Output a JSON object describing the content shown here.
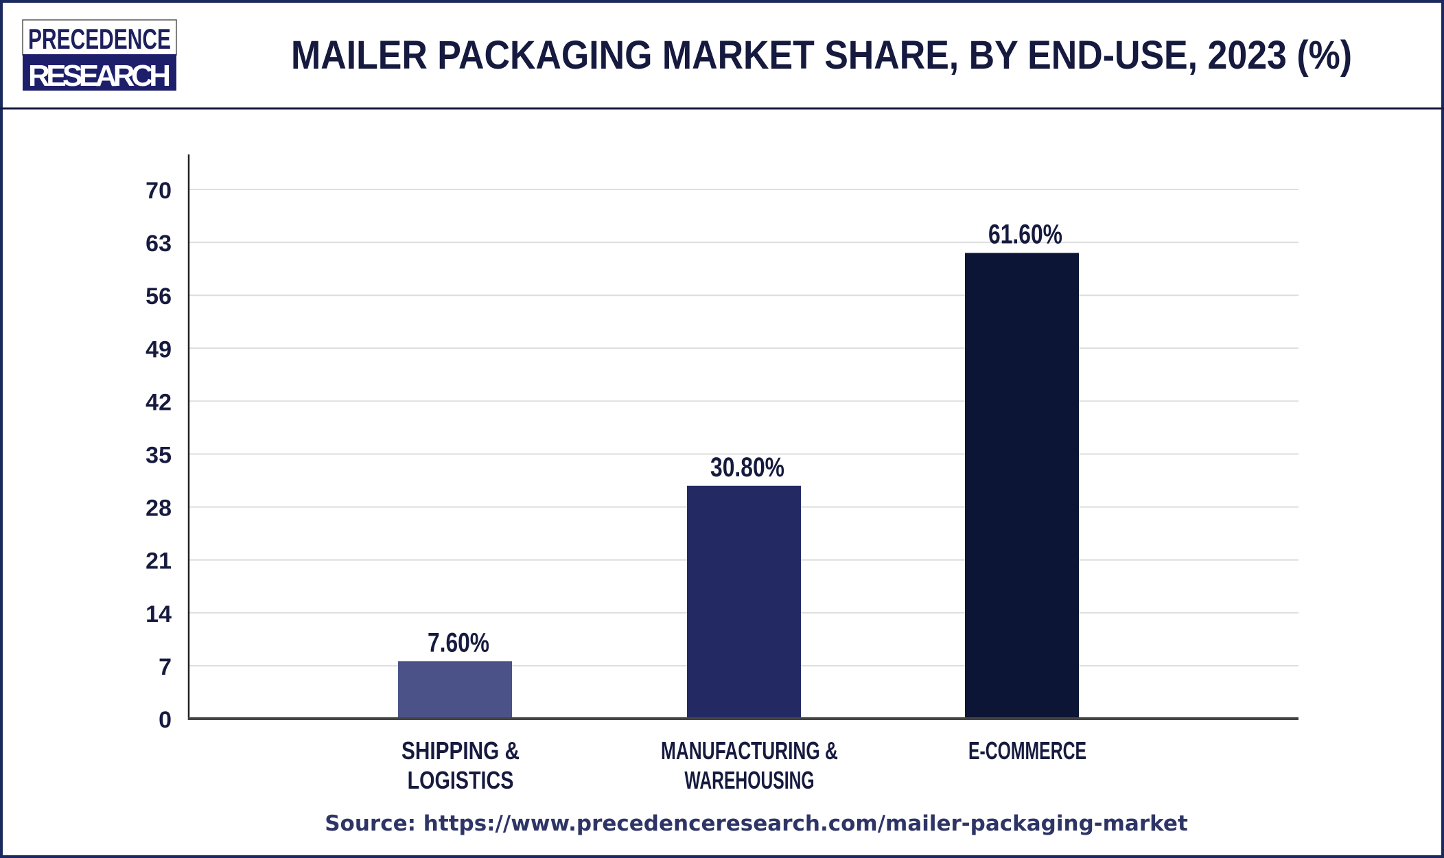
{
  "logo": {
    "line1": "PRECEDENCE",
    "line2": "RESEARCH"
  },
  "title": "MAILER PACKAGING MARKET SHARE, BY END-USE, 2023 (%)",
  "source": "Source: https://www.precedenceresearch.com/mailer-packaging-market",
  "colors": {
    "border": "#1b2a5e",
    "bars": [
      "#4a5288",
      "#232a63",
      "#0c1535"
    ]
  },
  "chart_data": {
    "type": "bar",
    "title": "MAILER PACKAGING MARKET SHARE, BY END-USE, 2023 (%)",
    "categories": [
      [
        "SHIPPING &",
        "LOGISTICS"
      ],
      [
        "MANUFACTURING &",
        "WAREHOUSING"
      ],
      [
        "E-COMMERCE"
      ]
    ],
    "values": [
      7.6,
      30.8,
      61.6
    ],
    "data_labels": [
      "7.60%",
      "30.80%",
      "61.60%"
    ],
    "yticks": [
      0,
      7,
      14,
      21,
      28,
      35,
      42,
      49,
      56,
      63,
      70
    ],
    "ylim": [
      0,
      70
    ],
    "grid": true,
    "xlabel": "",
    "ylabel": ""
  }
}
